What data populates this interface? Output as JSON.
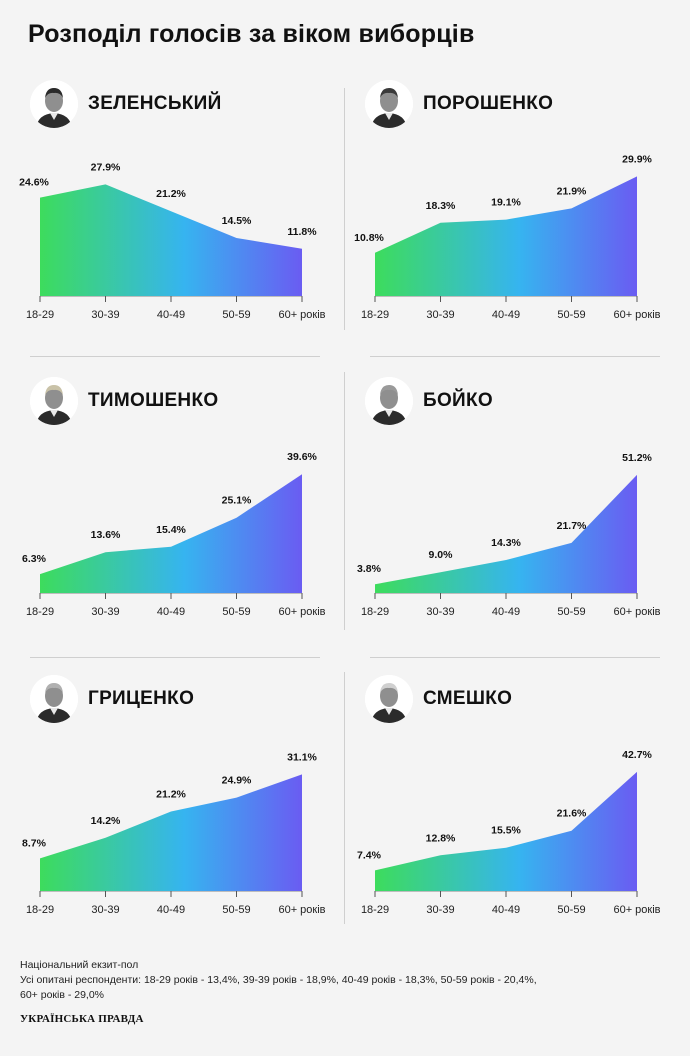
{
  "title": "Розподіл голосів за віком виборців",
  "colors": {
    "gradient_start": "#3ddc5c",
    "gradient_mid": "#36b4f0",
    "gradient_end": "#6a5cf2",
    "background": "#f4f4f4"
  },
  "footer": {
    "line1": "Національний екзит-пол",
    "line2": "Усі опитані респонденти: 18-29 років - 13,4%, 39-39 років - 18,9%, 40-49 років - 18,3%, 50-59 років - 20,4%,",
    "line3": "60+ років - 29,0%",
    "logo": "УКРАЇНСЬКА ПРАВДА"
  },
  "panels": [
    {
      "name": "ЗЕЛЕНСЬКИЙ",
      "avatar_icon": "zelensky-portrait-icon"
    },
    {
      "name": "ПОРОШЕНКО",
      "avatar_icon": "poroshenko-portrait-icon"
    },
    {
      "name": "ТИМОШЕНКО",
      "avatar_icon": "tymoshenko-portrait-icon"
    },
    {
      "name": "БОЙКО",
      "avatar_icon": "boyko-portrait-icon"
    },
    {
      "name": "ГРИЦЕНКО",
      "avatar_icon": "hrytsenko-portrait-icon"
    },
    {
      "name": "СМЕШКО",
      "avatar_icon": "smeshko-portrait-icon"
    }
  ],
  "chart_data": [
    {
      "type": "area",
      "title": "ЗЕЛЕНСЬКИЙ",
      "categories": [
        "18-29",
        "30-39",
        "40-49",
        "50-59",
        "60+ років"
      ],
      "values": [
        24.6,
        27.9,
        21.2,
        14.5,
        11.8
      ],
      "labels": [
        "24.6%",
        "27.9%",
        "21.2%",
        "14.5%",
        "11.8%"
      ],
      "ylim": [
        0,
        30
      ],
      "grid": false
    },
    {
      "type": "area",
      "title": "ПОРОШЕНКО",
      "categories": [
        "18-29",
        "30-39",
        "40-49",
        "50-59",
        "60+ років"
      ],
      "values": [
        10.8,
        18.3,
        19.1,
        21.9,
        29.9
      ],
      "labels": [
        "10.8%",
        "18.3%",
        "19.1%",
        "21.9%",
        "29.9%"
      ],
      "ylim": [
        0,
        30
      ],
      "grid": false
    },
    {
      "type": "area",
      "title": "ТИМОШЕНКО",
      "categories": [
        "18-29",
        "30-39",
        "40-49",
        "50-59",
        "60+ років"
      ],
      "values": [
        6.3,
        13.6,
        15.4,
        25.1,
        39.6
      ],
      "labels": [
        "6.3%",
        "13.6%",
        "15.4%",
        "25.1%",
        "39.6%"
      ],
      "ylim": [
        0,
        40
      ],
      "grid": false
    },
    {
      "type": "area",
      "title": "БОЙКО",
      "categories": [
        "18-29",
        "30-39",
        "40-49",
        "50-59",
        "60+ років"
      ],
      "values": [
        3.8,
        9.0,
        14.3,
        21.7,
        51.2
      ],
      "labels": [
        "3.8%",
        "9.0%",
        "14.3%",
        "21.7%",
        "51.2%"
      ],
      "ylim": [
        0,
        52
      ],
      "grid": false
    },
    {
      "type": "area",
      "title": "ГРИЦЕНКО",
      "categories": [
        "18-29",
        "30-39",
        "40-49",
        "50-59",
        "60+ років"
      ],
      "values": [
        8.7,
        14.2,
        21.2,
        24.9,
        31.1
      ],
      "labels": [
        "8.7%",
        "14.2%",
        "21.2%",
        "24.9%",
        "31.1%"
      ],
      "ylim": [
        0,
        32
      ],
      "grid": false
    },
    {
      "type": "area",
      "title": "СМЕШКО",
      "categories": [
        "18-29",
        "30-39",
        "40-49",
        "50-59",
        "60+ років"
      ],
      "values": [
        7.4,
        12.8,
        15.5,
        21.6,
        42.7
      ],
      "labels": [
        "7.4%",
        "12.8%",
        "15.5%",
        "21.6%",
        "42.7%"
      ],
      "ylim": [
        0,
        43
      ],
      "grid": false
    }
  ]
}
